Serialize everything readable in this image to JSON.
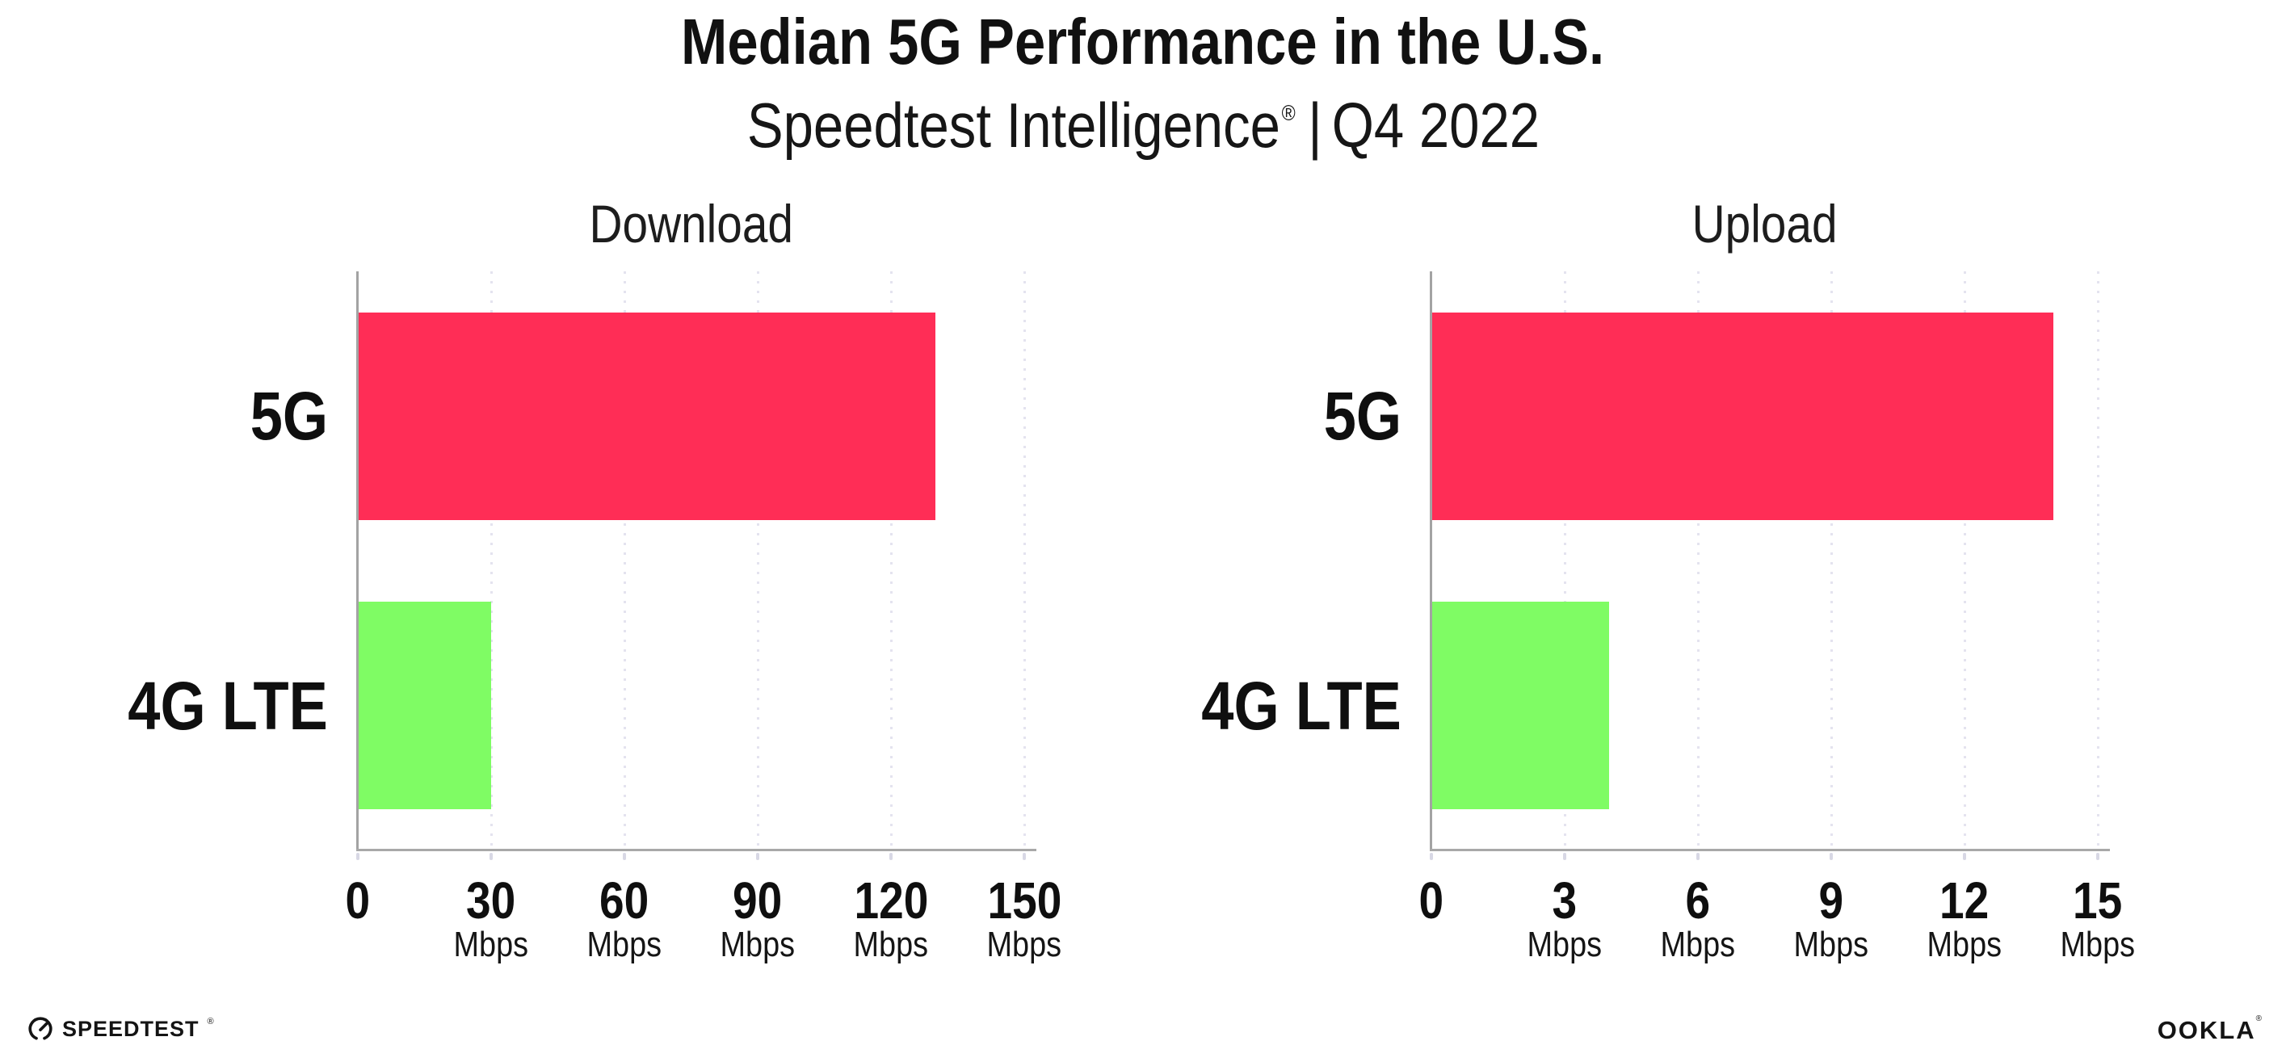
{
  "header": {
    "title": "Median 5G Performance in the U.S.",
    "subtitle": {
      "brand": "Speedtest Intelligence",
      "reg": "®",
      "separator": "|",
      "period": "Q4 2022"
    }
  },
  "chart_data": [
    {
      "type": "bar",
      "orientation": "horizontal",
      "title": "Download",
      "categories": [
        "5G",
        "4G LTE"
      ],
      "values": [
        130,
        30
      ],
      "unit_label": "Mbps",
      "xlim": [
        0,
        150
      ],
      "xticks": [
        0,
        30,
        60,
        90,
        120,
        150
      ],
      "bar_colors": [
        "#FF2D56",
        "#7FFC64"
      ],
      "grid": "dotted-vertical",
      "legend": "none"
    },
    {
      "type": "bar",
      "orientation": "horizontal",
      "title": "Upload",
      "categories": [
        "5G",
        "4G LTE"
      ],
      "values": [
        14,
        4
      ],
      "unit_label": "Mbps",
      "xlim": [
        0,
        15
      ],
      "xticks": [
        0,
        3,
        6,
        9,
        12,
        15
      ],
      "bar_colors": [
        "#FF2D56",
        "#7FFC64"
      ],
      "grid": "dotted-vertical",
      "legend": "none"
    }
  ],
  "footer": {
    "speedtest": {
      "icon": "speedtest-gauge-icon",
      "label": "SPEEDTEST",
      "reg": "®"
    },
    "ookla": {
      "label": "OOKLA",
      "reg": "®"
    }
  },
  "colors": {
    "bar_5g": "#FF2D56",
    "bar_4g_lte": "#7FFC64",
    "gridline": "#E4E3EF",
    "axis": "#A3A3A3",
    "text": "#121212"
  }
}
